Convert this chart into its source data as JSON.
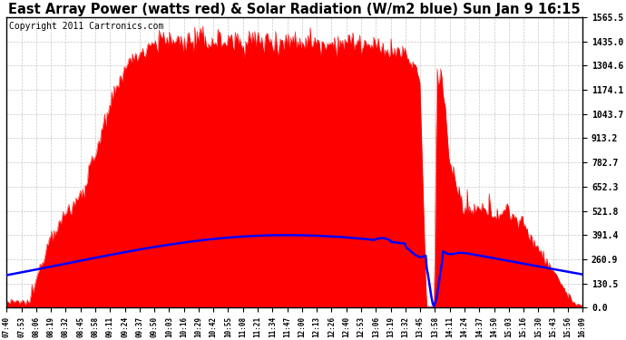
{
  "title": "East Array Power (watts red) & Solar Radiation (W/m2 blue) Sun Jan 9 16:15",
  "copyright": "Copyright 2011 Cartronics.com",
  "ylim": [
    0.0,
    1565.5
  ],
  "yticks": [
    0.0,
    130.5,
    260.9,
    391.4,
    521.8,
    652.3,
    782.7,
    913.2,
    1043.7,
    1174.1,
    1304.6,
    1435.0,
    1565.5
  ],
  "xtick_labels": [
    "07:40",
    "07:53",
    "08:06",
    "08:19",
    "08:32",
    "08:45",
    "08:58",
    "09:11",
    "09:24",
    "09:37",
    "09:50",
    "10:03",
    "10:16",
    "10:29",
    "10:42",
    "10:55",
    "11:08",
    "11:21",
    "11:34",
    "11:47",
    "12:00",
    "12:13",
    "12:26",
    "12:40",
    "12:53",
    "13:06",
    "13:19",
    "13:32",
    "13:45",
    "13:58",
    "14:11",
    "14:24",
    "14:37",
    "14:50",
    "15:03",
    "15:16",
    "15:30",
    "15:43",
    "15:56",
    "16:09"
  ],
  "bg_color": "#ffffff",
  "grid_color": "#c8c8c8",
  "fill_color": "#ff0000",
  "line_color": "#0000ff",
  "title_fontsize": 10.5,
  "copyright_fontsize": 7,
  "tick_fontsize": 7,
  "xtick_fontsize": 5.5
}
